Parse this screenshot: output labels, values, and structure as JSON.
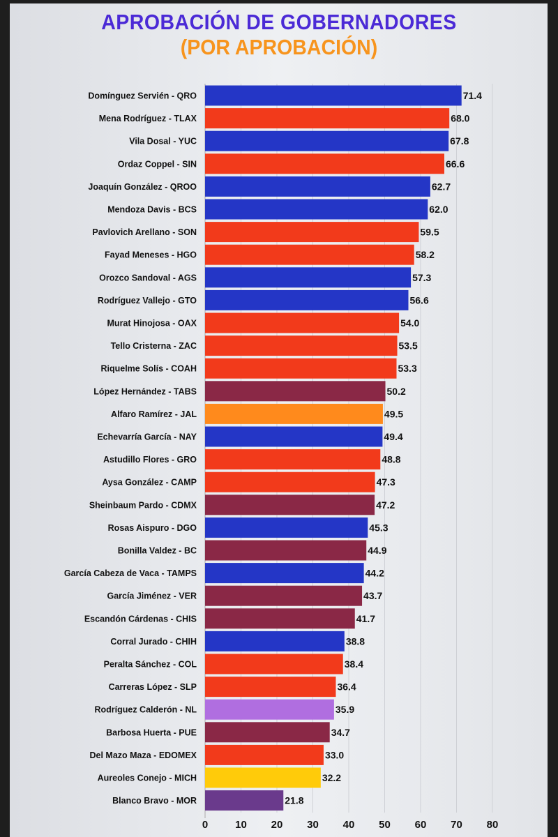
{
  "chart_data": {
    "type": "bar",
    "orientation": "horizontal",
    "title": "APROBACIÓN DE GOBERNADORES",
    "subtitle": "(POR APROBACIÓN)",
    "xlim": [
      0,
      80
    ],
    "xticks": [
      "0",
      "10",
      "20",
      "30",
      "40",
      "50",
      "60",
      "70",
      "80"
    ],
    "grid": true,
    "categories": [
      "Domínguez Servién - QRO",
      "Mena Rodríguez - TLAX",
      "Vila Dosal - YUC",
      "Ordaz Coppel - SIN",
      "Joaquín González - QROO",
      "Mendoza Davis - BCS",
      "Pavlovich Arellano - SON",
      "Fayad Meneses - HGO",
      "Orozco Sandoval - AGS",
      "Rodríguez Vallejo - GTO",
      "Murat Hinojosa - OAX",
      "Tello Cristerna - ZAC",
      "Riquelme Solís - COAH",
      "López Hernández - TABS",
      "Alfaro Ramírez - JAL",
      "Echevarría García - NAY",
      "Astudillo Flores - GRO",
      "Aysa González - CAMP",
      "Sheinbaum Pardo - CDMX",
      "Rosas Aispuro - DGO",
      "Bonilla Valdez - BC",
      "García Cabeza de Vaca - TAMPS",
      "García Jiménez - VER",
      "Escandón Cárdenas - CHIS",
      "Corral Jurado - CHIH",
      "Peralta Sánchez - COL",
      "Carreras López - SLP",
      "Rodríguez Calderón - NL",
      "Barbosa Huerta - PUE",
      "Del Mazo Maza - EDOMEX",
      "Aureoles Conejo - MICH",
      "Blanco Bravo - MOR"
    ],
    "values": [
      71.4,
      68.0,
      67.8,
      66.6,
      62.7,
      62.0,
      59.5,
      58.2,
      57.3,
      56.6,
      54.0,
      53.5,
      53.3,
      50.2,
      49.5,
      49.4,
      48.8,
      47.3,
      47.2,
      45.3,
      44.9,
      44.2,
      43.7,
      41.7,
      38.8,
      38.4,
      36.4,
      35.9,
      34.7,
      33.0,
      32.2,
      21.8
    ],
    "value_labels": [
      "71.4",
      "68.0",
      "67.8",
      "66.6",
      "62.7",
      "62.0",
      "59.5",
      "58.2",
      "57.3",
      "56.6",
      "54.0",
      "53.5",
      "53.3",
      "50.2",
      "49.5",
      "49.4",
      "48.8",
      "47.3",
      "47.2",
      "45.3",
      "44.9",
      "44.2",
      "43.7",
      "41.7",
      "38.8",
      "38.4",
      "36.4",
      "35.9",
      "34.7",
      "33.0",
      "32.2",
      "21.8"
    ],
    "colors": [
      "#2436c6",
      "#f23a1b",
      "#2436c6",
      "#f23a1b",
      "#2436c6",
      "#2436c6",
      "#f23a1b",
      "#f23a1b",
      "#2436c6",
      "#2436c6",
      "#f23a1b",
      "#f23a1b",
      "#f23a1b",
      "#8a2846",
      "#ff8a1c",
      "#2436c6",
      "#f23a1b",
      "#f23a1b",
      "#8a2846",
      "#2436c6",
      "#8a2846",
      "#2436c6",
      "#8a2846",
      "#8a2846",
      "#2436c6",
      "#f23a1b",
      "#f23a1b",
      "#b06ee0",
      "#8a2846",
      "#f23a1b",
      "#ffcb0a",
      "#6a3a8c"
    ]
  }
}
